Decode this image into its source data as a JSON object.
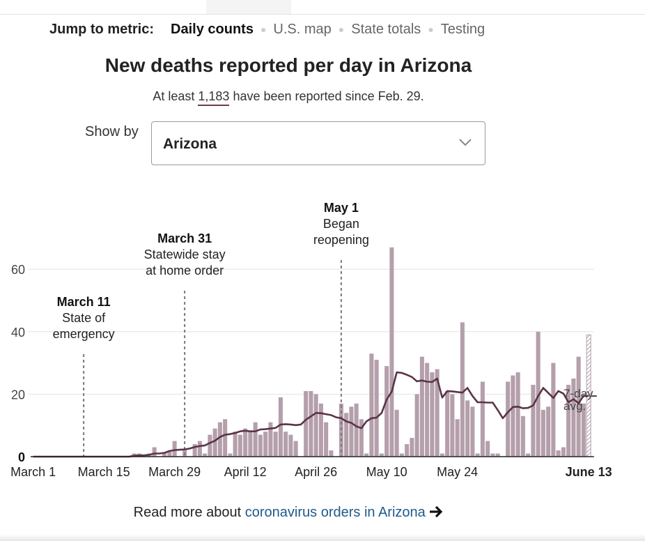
{
  "nav": {
    "label": "Jump to metric:",
    "items": [
      "Daily counts",
      "U.S. map",
      "State totals",
      "Testing"
    ]
  },
  "title": "New deaths reported per day in Arizona",
  "subtitle": {
    "prefix": "At least",
    "number": "1,183",
    "suffix": "have been reported since Feb. 29."
  },
  "showby": {
    "label": "Show by",
    "value": "Arizona",
    "icon": "chevron-down-icon"
  },
  "footer": {
    "prefix": "Read more about",
    "link": "coronavirus orders in Arizona",
    "icon": "arrow-right-icon"
  },
  "colors": {
    "bar": "#b49fab",
    "line": "#5b3447",
    "link": "#1f5a8c"
  },
  "chart_data": {
    "type": "bar",
    "start_date": "March 1",
    "x_tick_labels": [
      "March 1",
      "March 15",
      "March 29",
      "April 12",
      "April 26",
      "May 10",
      "May 24",
      "June 13"
    ],
    "y_ticks": [
      0,
      20,
      40,
      60
    ],
    "ylim": [
      0,
      70
    ],
    "grid": true,
    "values": [
      0,
      0,
      0,
      0,
      0,
      0,
      0,
      0,
      0,
      0,
      0,
      0,
      0,
      0,
      0,
      0,
      0,
      0,
      0,
      0,
      1,
      1,
      0,
      1,
      3,
      0,
      1,
      2,
      5,
      0,
      2,
      0,
      4,
      5,
      1,
      7,
      9,
      11,
      12,
      1,
      8,
      7,
      9,
      8,
      11,
      7,
      8,
      11,
      8,
      19,
      8,
      7,
      5,
      0,
      21,
      21,
      20,
      17,
      11,
      2,
      0,
      17,
      14,
      16,
      17,
      12,
      1,
      33,
      31,
      1,
      29,
      67,
      15,
      1,
      4,
      6,
      20,
      32,
      30,
      27,
      28,
      1,
      21,
      20,
      12,
      43,
      18,
      16,
      1,
      24,
      5,
      1,
      1,
      0,
      24,
      26,
      27,
      13,
      1,
      23,
      40,
      15,
      16,
      30,
      2,
      3,
      23,
      25,
      32,
      17,
      39
    ],
    "avg": [
      0,
      0,
      0,
      0,
      0,
      0,
      0,
      0,
      0,
      0,
      0,
      0,
      0,
      0,
      0,
      0,
      0,
      0,
      0,
      0,
      0.3,
      0.4,
      0.4,
      0.6,
      1,
      1,
      1.2,
      1.8,
      2.1,
      2.2,
      2.3,
      2.6,
      3.1,
      3.4,
      3.6,
      4.4,
      5.1,
      6.3,
      7,
      7.2,
      7.6,
      8.1,
      8.3,
      8.1,
      8.1,
      8.7,
      8.8,
      9,
      9.2,
      10.3,
      10.4,
      10.3,
      10.1,
      10.3,
      11.8,
      12.9,
      14,
      13.9,
      13.6,
      13.3,
      12.6,
      12.3,
      11.3,
      10.8,
      9.7,
      9.1,
      11.3,
      12.3,
      12.5,
      14,
      18.3,
      20.8,
      27,
      26.8,
      26.2,
      25.5,
      24.1,
      24.4,
      24,
      23.9,
      25,
      18.9,
      21,
      20.9,
      20.7,
      20.5,
      22,
      19.4,
      17.4,
      17.4,
      17.3,
      17.3,
      14.9,
      12.3,
      14.2,
      15.9,
      16,
      15.5,
      15.6,
      16.4,
      19.4,
      22,
      20.4,
      18.8,
      21,
      20.2,
      17.4,
      18.4,
      17.1,
      19.5,
      19.4
    ],
    "avg_label": [
      "7-day",
      "avg."
    ],
    "annotations": [
      {
        "date_index": 10,
        "date": "March 11",
        "lines": [
          "State of",
          "emergency"
        ]
      },
      {
        "date_index": 30,
        "date": "March 31",
        "lines": [
          "Statewide stay",
          "at home order"
        ]
      },
      {
        "date_index": 61,
        "date": "May 1",
        "lines": [
          "Began",
          "reopening"
        ]
      }
    ]
  }
}
